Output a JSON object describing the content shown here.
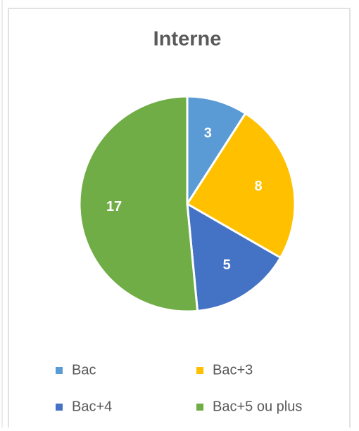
{
  "chart_data": {
    "type": "pie",
    "title": "Interne",
    "categories": [
      "Bac",
      "Bac+3",
      "Bac+4",
      "Bac+5 ou plus"
    ],
    "values": [
      3,
      8,
      5,
      17
    ],
    "colors": [
      "#5b9bd5",
      "#ffc000",
      "#4472c4",
      "#70ad47"
    ],
    "legend": "bottom"
  }
}
